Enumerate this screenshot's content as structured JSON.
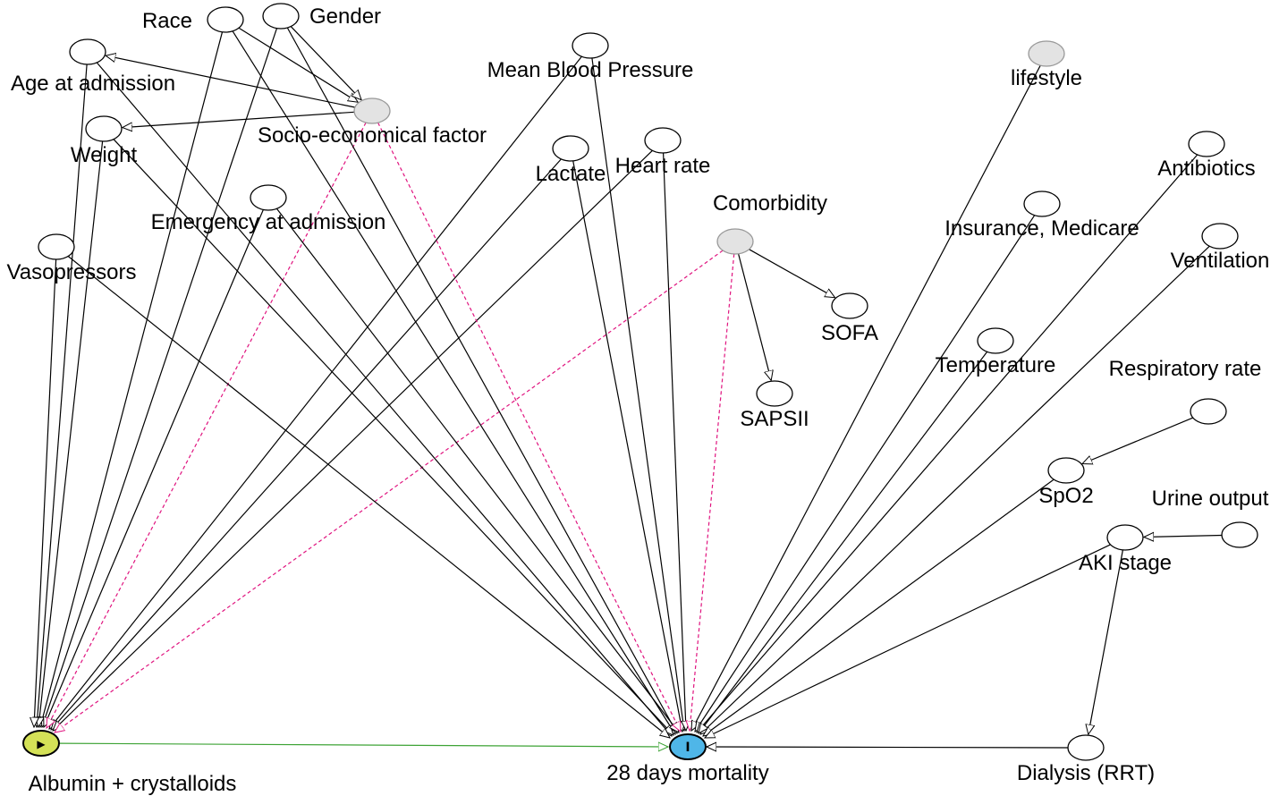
{
  "diagram": {
    "colors": {
      "edge_causal": "#000000",
      "edge_biasing": "#e0147f",
      "edge_exposure_outcome": "#3da335",
      "latent_fill": "#e3e3e3",
      "latent_stroke": "#999999",
      "node_stroke": "#000000",
      "exposure_fill": "#d4e157",
      "outcome_fill": "#4fb6e8"
    },
    "nodes": [
      {
        "id": "race",
        "label": "Race",
        "kind": "adjusted"
      },
      {
        "id": "gender",
        "label": "Gender",
        "kind": "adjusted"
      },
      {
        "id": "age",
        "label": "Age at admission",
        "kind": "adjusted"
      },
      {
        "id": "socio",
        "label": "Socio-economical factor",
        "kind": "latent"
      },
      {
        "id": "weight",
        "label": "Weight",
        "kind": "adjusted"
      },
      {
        "id": "emergency",
        "label": "Emergency at admission",
        "kind": "adjusted"
      },
      {
        "id": "vaso",
        "label": "Vasopressors",
        "kind": "adjusted"
      },
      {
        "id": "mbp",
        "label": "Mean Blood Pressure",
        "kind": "adjusted"
      },
      {
        "id": "lactate",
        "label": "Lactate",
        "kind": "adjusted"
      },
      {
        "id": "heartrate",
        "label": "Heart rate",
        "kind": "adjusted"
      },
      {
        "id": "comorb",
        "label": "Comorbidity",
        "kind": "latent"
      },
      {
        "id": "sofa",
        "label": "SOFA",
        "kind": "adjusted"
      },
      {
        "id": "sapsii",
        "label": "SAPSII",
        "kind": "adjusted"
      },
      {
        "id": "lifestyle",
        "label": "lifestyle",
        "kind": "latent"
      },
      {
        "id": "antibiotics",
        "label": "Antibiotics",
        "kind": "adjusted"
      },
      {
        "id": "insurance",
        "label": "Insurance, Medicare",
        "kind": "adjusted"
      },
      {
        "id": "ventilation",
        "label": "Ventilation",
        "kind": "adjusted"
      },
      {
        "id": "temperature",
        "label": "Temperature",
        "kind": "adjusted"
      },
      {
        "id": "resprate",
        "label": "Respiratory rate",
        "kind": "adjusted"
      },
      {
        "id": "spo2",
        "label": "SpO2",
        "kind": "adjusted"
      },
      {
        "id": "urine",
        "label": "Urine output",
        "kind": "adjusted"
      },
      {
        "id": "aki",
        "label": "AKI stage",
        "kind": "adjusted"
      },
      {
        "id": "dialysis",
        "label": "Dialysis (RRT)",
        "kind": "adjusted"
      },
      {
        "id": "albumin",
        "label": "Albumin + crystalloids",
        "kind": "exposure",
        "glyph": "▶"
      },
      {
        "id": "mortality",
        "label": "28 days mortality",
        "kind": "outcome",
        "glyph": "I"
      }
    ],
    "edges": [
      {
        "from": "race",
        "to": "socio",
        "style": "causal"
      },
      {
        "from": "gender",
        "to": "socio",
        "style": "causal"
      },
      {
        "from": "socio",
        "to": "age",
        "style": "causal"
      },
      {
        "from": "socio",
        "to": "weight",
        "style": "causal"
      },
      {
        "from": "race",
        "to": "albumin",
        "style": "causal"
      },
      {
        "from": "gender",
        "to": "albumin",
        "style": "causal"
      },
      {
        "from": "age",
        "to": "albumin",
        "style": "causal"
      },
      {
        "from": "weight",
        "to": "albumin",
        "style": "causal"
      },
      {
        "from": "vaso",
        "to": "albumin",
        "style": "causal"
      },
      {
        "from": "emergency",
        "to": "albumin",
        "style": "causal"
      },
      {
        "from": "mbp",
        "to": "albumin",
        "style": "causal"
      },
      {
        "from": "lactate",
        "to": "albumin",
        "style": "causal"
      },
      {
        "from": "heartrate",
        "to": "albumin",
        "style": "causal"
      },
      {
        "from": "socio",
        "to": "albumin",
        "style": "biasing"
      },
      {
        "from": "comorb",
        "to": "albumin",
        "style": "biasing"
      },
      {
        "from": "race",
        "to": "mortality",
        "style": "causal"
      },
      {
        "from": "gender",
        "to": "mortality",
        "style": "causal"
      },
      {
        "from": "age",
        "to": "mortality",
        "style": "causal"
      },
      {
        "from": "weight",
        "to": "mortality",
        "style": "causal"
      },
      {
        "from": "vaso",
        "to": "mortality",
        "style": "causal"
      },
      {
        "from": "emergency",
        "to": "mortality",
        "style": "causal"
      },
      {
        "from": "mbp",
        "to": "mortality",
        "style": "causal"
      },
      {
        "from": "lactate",
        "to": "mortality",
        "style": "causal"
      },
      {
        "from": "heartrate",
        "to": "mortality",
        "style": "causal"
      },
      {
        "from": "socio",
        "to": "mortality",
        "style": "biasing"
      },
      {
        "from": "comorb",
        "to": "mortality",
        "style": "biasing"
      },
      {
        "from": "comorb",
        "to": "sofa",
        "style": "causal"
      },
      {
        "from": "comorb",
        "to": "sapsii",
        "style": "causal"
      },
      {
        "from": "lifestyle",
        "to": "mortality",
        "style": "causal"
      },
      {
        "from": "insurance",
        "to": "mortality",
        "style": "causal"
      },
      {
        "from": "antibiotics",
        "to": "mortality",
        "style": "causal"
      },
      {
        "from": "ventilation",
        "to": "mortality",
        "style": "causal"
      },
      {
        "from": "temperature",
        "to": "mortality",
        "style": "causal"
      },
      {
        "from": "resprate",
        "to": "spo2",
        "style": "causal"
      },
      {
        "from": "spo2",
        "to": "mortality",
        "style": "causal"
      },
      {
        "from": "urine",
        "to": "aki",
        "style": "causal"
      },
      {
        "from": "aki",
        "to": "mortality",
        "style": "causal"
      },
      {
        "from": "aki",
        "to": "dialysis",
        "style": "causal"
      },
      {
        "from": "dialysis",
        "to": "mortality",
        "style": "causal"
      },
      {
        "from": "albumin",
        "to": "mortality",
        "style": "exposure_outcome"
      }
    ]
  }
}
